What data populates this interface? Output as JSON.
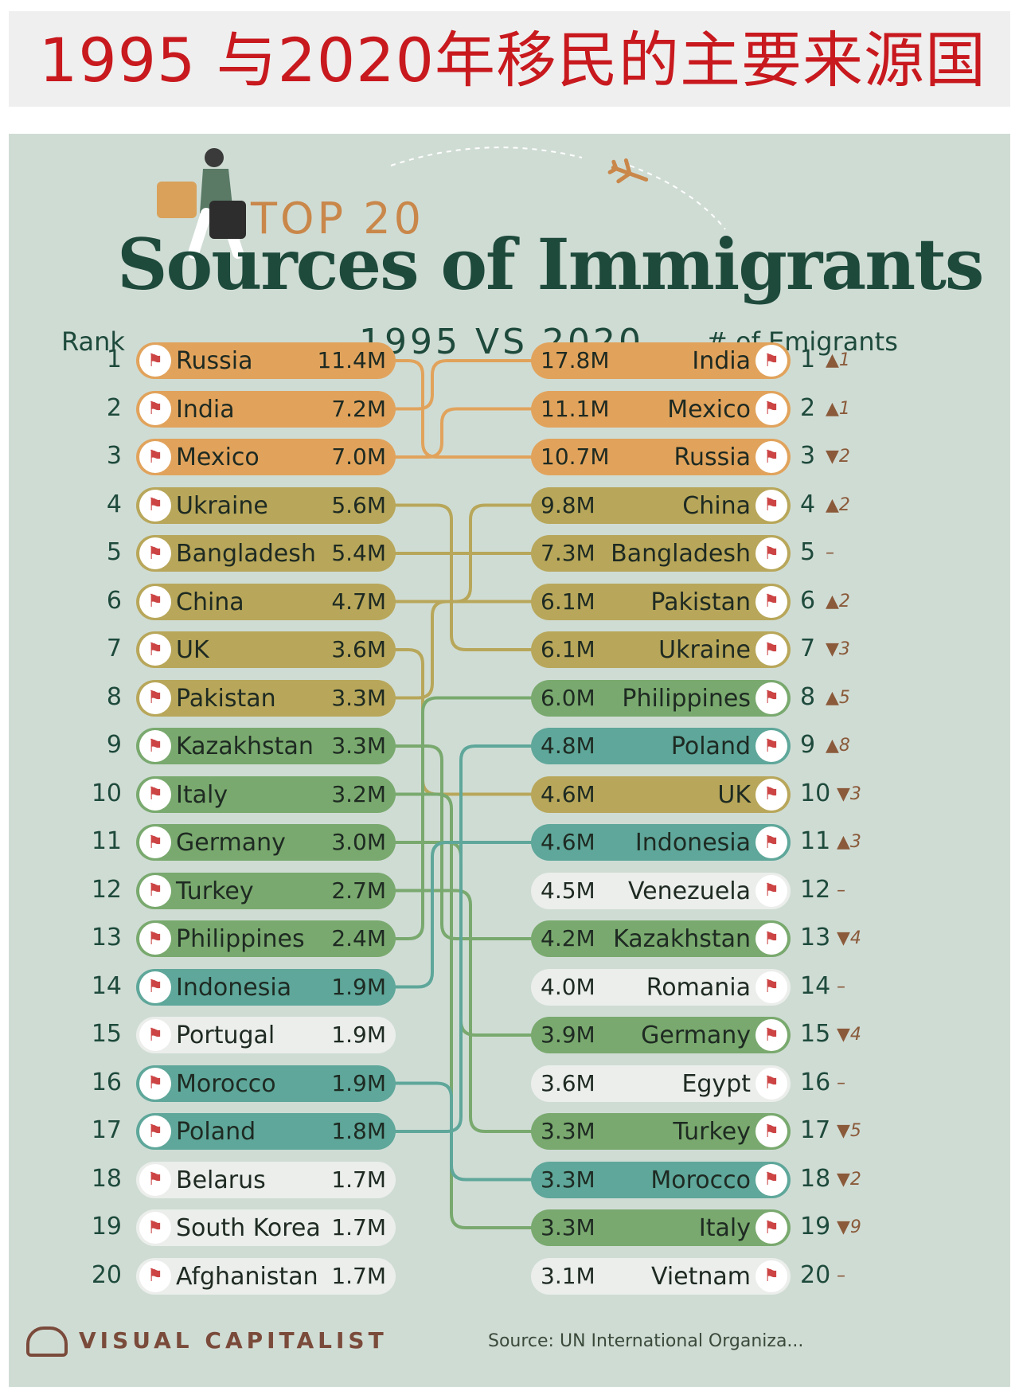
{
  "header": {
    "title": "1995 与2020年移民的主要来源国"
  },
  "infographic": {
    "kicker": "TOP 20",
    "title": "Sources of Immigrants",
    "subtitle": "1995 VS 2020",
    "rank_label": "Rank",
    "emigrants_label": "# of Emigrants",
    "footer_brand": "VISUAL CAPITALIST",
    "footer_source": "Source: UN International Organiza..."
  },
  "colors": {
    "orange": "#e1a35c",
    "olive": "#b8a75a",
    "green": "#79a96e",
    "teal": "#5ea79a",
    "light": "#ebeeeb",
    "text": "#1e4a3c"
  },
  "left_1995": [
    {
      "rank": "1",
      "country": "Russia",
      "value": "11.4M",
      "color": "orange"
    },
    {
      "rank": "2",
      "country": "India",
      "value": "7.2M",
      "color": "orange"
    },
    {
      "rank": "3",
      "country": "Mexico",
      "value": "7.0M",
      "color": "orange"
    },
    {
      "rank": "4",
      "country": "Ukraine",
      "value": "5.6M",
      "color": "olive"
    },
    {
      "rank": "5",
      "country": "Bangladesh",
      "value": "5.4M",
      "color": "olive"
    },
    {
      "rank": "6",
      "country": "China",
      "value": "4.7M",
      "color": "olive"
    },
    {
      "rank": "7",
      "country": "UK",
      "value": "3.6M",
      "color": "olive"
    },
    {
      "rank": "8",
      "country": "Pakistan",
      "value": "3.3M",
      "color": "olive"
    },
    {
      "rank": "9",
      "country": "Kazakhstan",
      "value": "3.3M",
      "color": "green"
    },
    {
      "rank": "10",
      "country": "Italy",
      "value": "3.2M",
      "color": "green"
    },
    {
      "rank": "11",
      "country": "Germany",
      "value": "3.0M",
      "color": "green"
    },
    {
      "rank": "12",
      "country": "Turkey",
      "value": "2.7M",
      "color": "green"
    },
    {
      "rank": "13",
      "country": "Philippines",
      "value": "2.4M",
      "color": "green"
    },
    {
      "rank": "14",
      "country": "Indonesia",
      "value": "1.9M",
      "color": "teal"
    },
    {
      "rank": "15",
      "country": "Portugal",
      "value": "1.9M",
      "color": "light"
    },
    {
      "rank": "16",
      "country": "Morocco",
      "value": "1.9M",
      "color": "teal"
    },
    {
      "rank": "17",
      "country": "Poland",
      "value": "1.8M",
      "color": "teal"
    },
    {
      "rank": "18",
      "country": "Belarus",
      "value": "1.7M",
      "color": "light"
    },
    {
      "rank": "19",
      "country": "South Korea",
      "value": "1.7M",
      "color": "light"
    },
    {
      "rank": "20",
      "country": "Afghanistan",
      "value": "1.7M",
      "color": "light"
    }
  ],
  "right_2020": [
    {
      "rank": "1",
      "country": "India",
      "value": "17.8M",
      "change": "▲1",
      "color": "orange"
    },
    {
      "rank": "2",
      "country": "Mexico",
      "value": "11.1M",
      "change": "▲1",
      "color": "orange"
    },
    {
      "rank": "3",
      "country": "Russia",
      "value": "10.7M",
      "change": "▼2",
      "color": "orange"
    },
    {
      "rank": "4",
      "country": "China",
      "value": "9.8M",
      "change": "▲2",
      "color": "olive"
    },
    {
      "rank": "5",
      "country": "Bangladesh",
      "value": "7.3M",
      "change": "–",
      "color": "olive"
    },
    {
      "rank": "6",
      "country": "Pakistan",
      "value": "6.1M",
      "change": "▲2",
      "color": "olive"
    },
    {
      "rank": "7",
      "country": "Ukraine",
      "value": "6.1M",
      "change": "▼3",
      "color": "olive"
    },
    {
      "rank": "8",
      "country": "Philippines",
      "value": "6.0M",
      "change": "▲5",
      "color": "green"
    },
    {
      "rank": "9",
      "country": "Poland",
      "value": "4.8M",
      "change": "▲8",
      "color": "teal"
    },
    {
      "rank": "10",
      "country": "UK",
      "value": "4.6M",
      "change": "▼3",
      "color": "olive"
    },
    {
      "rank": "11",
      "country": "Indonesia",
      "value": "4.6M",
      "change": "▲3",
      "color": "teal"
    },
    {
      "rank": "12",
      "country": "Venezuela",
      "value": "4.5M",
      "change": "–",
      "color": "light"
    },
    {
      "rank": "13",
      "country": "Kazakhstan",
      "value": "4.2M",
      "change": "▼4",
      "color": "green"
    },
    {
      "rank": "14",
      "country": "Romania",
      "value": "4.0M",
      "change": "–",
      "color": "light"
    },
    {
      "rank": "15",
      "country": "Germany",
      "value": "3.9M",
      "change": "▼4",
      "color": "green"
    },
    {
      "rank": "16",
      "country": "Egypt",
      "value": "3.6M",
      "change": "–",
      "color": "light"
    },
    {
      "rank": "17",
      "country": "Turkey",
      "value": "3.3M",
      "change": "▼5",
      "color": "green"
    },
    {
      "rank": "18",
      "country": "Morocco",
      "value": "3.3M",
      "change": "▼2",
      "color": "teal"
    },
    {
      "rank": "19",
      "country": "Italy",
      "value": "3.3M",
      "change": "▼9",
      "color": "green"
    },
    {
      "rank": "20",
      "country": "Vietnam",
      "value": "3.1M",
      "change": "–",
      "color": "light"
    }
  ],
  "links": [
    {
      "from": "1",
      "to": "3",
      "color": "orange"
    },
    {
      "from": "2",
      "to": "1",
      "color": "orange"
    },
    {
      "from": "3",
      "to": "2",
      "color": "orange"
    },
    {
      "from": "4",
      "to": "7",
      "color": "olive"
    },
    {
      "from": "5",
      "to": "5",
      "color": "olive"
    },
    {
      "from": "6",
      "to": "4",
      "color": "olive"
    },
    {
      "from": "7",
      "to": "10",
      "color": "olive"
    },
    {
      "from": "8",
      "to": "6",
      "color": "olive"
    },
    {
      "from": "9",
      "to": "13",
      "color": "green"
    },
    {
      "from": "10",
      "to": "19",
      "color": "green"
    },
    {
      "from": "11",
      "to": "15",
      "color": "green"
    },
    {
      "from": "12",
      "to": "17",
      "color": "green"
    },
    {
      "from": "13",
      "to": "8",
      "color": "green"
    },
    {
      "from": "14",
      "to": "11",
      "color": "teal"
    },
    {
      "from": "16",
      "to": "18",
      "color": "teal"
    },
    {
      "from": "17",
      "to": "9",
      "color": "teal"
    }
  ]
}
